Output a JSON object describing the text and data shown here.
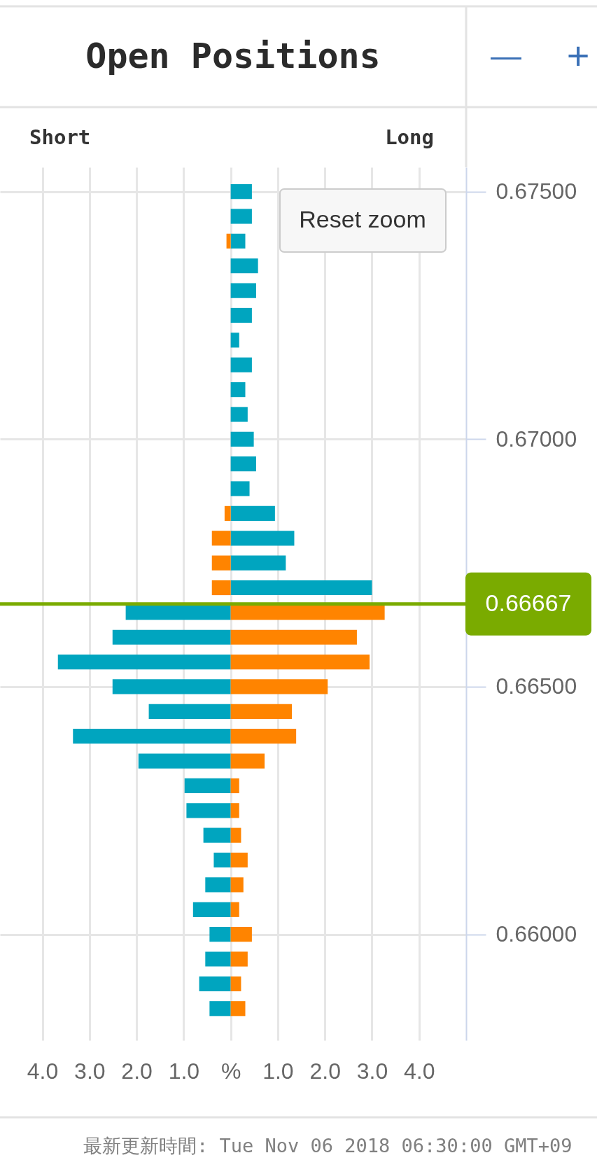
{
  "chart_data": {
    "type": "bar",
    "title": "Open Positions",
    "orientation": "horizontal",
    "stacked": true,
    "x": [
      0.675,
      0.6745,
      0.674,
      0.6735,
      0.673,
      0.6725,
      0.672,
      0.6715,
      0.671,
      0.6705,
      0.67,
      0.6695,
      0.669,
      0.6685,
      0.668,
      0.6675,
      0.667,
      0.6665,
      0.666,
      0.6655,
      0.665,
      0.6645,
      0.664,
      0.6635,
      0.663,
      0.6625,
      0.662,
      0.6615,
      0.661,
      0.6605,
      0.66,
      0.6595,
      0.659,
      0.6585
    ],
    "series": [
      {
        "color": "#00a5bf",
        "values": [
          0.45,
          0.45,
          0.31,
          0.58,
          0.54,
          0.45,
          0.18,
          0.45,
          0.31,
          0.36,
          0.49,
          0.54,
          0.4,
          0.94,
          1.35,
          1.17,
          3.0,
          -2.23,
          -2.51,
          -3.67,
          -2.51,
          -1.74,
          -3.35,
          -1.96,
          -0.98,
          -0.94,
          -0.58,
          -0.36,
          -0.54,
          -0.8,
          -0.45,
          -0.54,
          -0.67,
          -0.45
        ]
      },
      {
        "color": "#ff8400",
        "values": [
          null,
          null,
          -0.09,
          null,
          null,
          null,
          null,
          null,
          null,
          null,
          null,
          null,
          null,
          -0.13,
          -0.4,
          -0.4,
          -0.4,
          3.27,
          2.68,
          2.95,
          2.06,
          1.3,
          1.39,
          0.72,
          0.18,
          0.18,
          0.22,
          0.36,
          0.27,
          0.18,
          0.45,
          0.36,
          0.22,
          0.31
        ]
      }
    ],
    "xlim": [
      -4.9,
      5.0
    ],
    "xticks": [
      {
        "value": -4,
        "label": "4.0"
      },
      {
        "value": -3,
        "label": "3.0"
      },
      {
        "value": -2,
        "label": "2.0"
      },
      {
        "value": -1,
        "label": "1.0"
      },
      {
        "value": 0,
        "label": "%"
      },
      {
        "value": 1,
        "label": "1.0"
      },
      {
        "value": 2,
        "label": "2.0"
      },
      {
        "value": 3,
        "label": "3.0"
      },
      {
        "value": 4,
        "label": "4.0"
      }
    ],
    "ylim": [
      0.65786,
      0.67549
    ],
    "yticks": [
      {
        "value": 0.675,
        "label": "0.67500"
      },
      {
        "value": 0.67,
        "label": "0.67000"
      },
      {
        "value": 0.665,
        "label": "0.66500"
      },
      {
        "value": 0.66,
        "label": "0.66000"
      }
    ],
    "grid": true,
    "ref_lines": [
      {
        "axis": "y",
        "value": 0.66667,
        "label": "0.66667",
        "color": "#7aab00"
      }
    ],
    "annotations": [
      "Short",
      "Long",
      "Reset zoom",
      "—",
      "+",
      "最新更新時間: Tue Nov 06 2018 06:30:00 GMT+09"
    ]
  }
}
